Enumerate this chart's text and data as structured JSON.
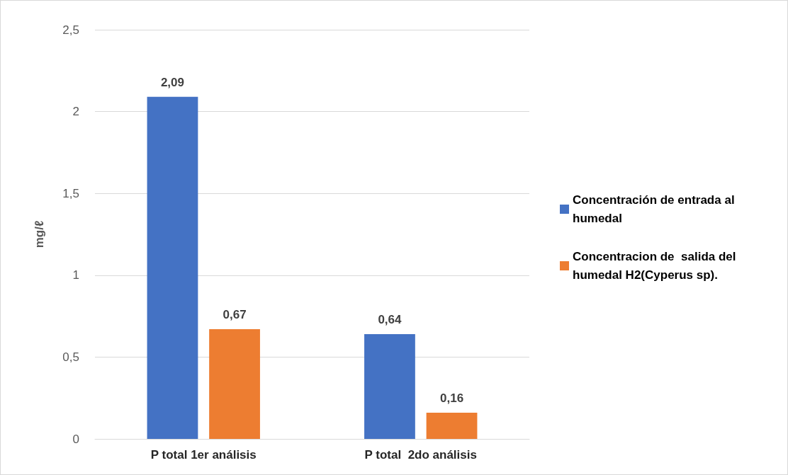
{
  "chart_data": {
    "type": "bar",
    "ylabel": "mg/ℓ",
    "categories": [
      "P total 1er análisis",
      "P total  2do análisis"
    ],
    "series": [
      {
        "name": "Concentración de entrada al humedal",
        "color": "#4472c4",
        "values": [
          2.09,
          0.64
        ],
        "value_labels": [
          "2,09",
          "0,64"
        ]
      },
      {
        "name": "Concentracion de  salida del humedal H2(Cyperus sp).",
        "color": "#ed7d31",
        "values": [
          0.67,
          0.16
        ],
        "value_labels": [
          "0,67",
          "0,16"
        ]
      }
    ],
    "ylim": [
      0,
      2.5
    ],
    "yticks": [
      {
        "value": 0,
        "label": "0"
      },
      {
        "value": 0.5,
        "label": "0,5"
      },
      {
        "value": 1,
        "label": "1"
      },
      {
        "value": 1.5,
        "label": "1,5"
      },
      {
        "value": 2,
        "label": "2"
      },
      {
        "value": 2.5,
        "label": "2,5"
      }
    ],
    "grid": "y",
    "legend": "right"
  }
}
